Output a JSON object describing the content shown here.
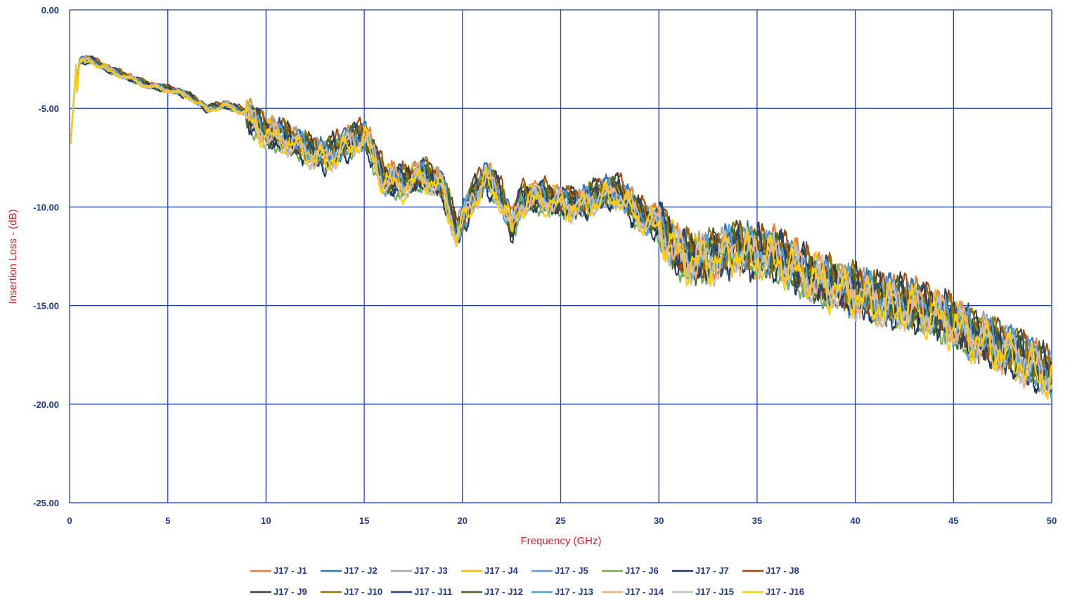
{
  "chart_data": {
    "type": "line",
    "title": "",
    "xlabel": "Frequency (GHz)",
    "ylabel": "Insertion Loss - (dB)",
    "xlim": [
      0,
      50
    ],
    "ylim": [
      -25,
      0
    ],
    "x_ticks": [
      "0",
      "5",
      "10",
      "15",
      "20",
      "25",
      "30",
      "35",
      "40",
      "45",
      "50"
    ],
    "y_ticks": [
      "0.00",
      "-5.00",
      "-10.00",
      "-15.00",
      "-20.00",
      "-25.00"
    ],
    "grid": true,
    "legend_position": "bottom",
    "colors": {
      "grid": "#1f3fb5",
      "axis_title": "#e0202a",
      "tick": "#1f3a8a"
    },
    "trend": {
      "x": [
        0.1,
        0.5,
        1.0,
        2.0,
        3.0,
        4.0,
        5.0,
        6.0,
        7.0,
        8.0,
        9.0,
        10.0,
        11.0,
        12.0,
        13.0,
        14.0,
        15.0,
        16.0,
        17.0,
        18.0,
        19.0,
        19.7,
        20.5,
        21.2,
        22.0,
        22.5,
        23.0,
        24.0,
        25.0,
        26.0,
        27.0,
        28.0,
        29.0,
        30.0,
        31.0,
        32.0,
        33.0,
        34.0,
        35.0,
        36.0,
        37.0,
        38.0,
        39.0,
        40.0,
        41.0,
        42.0,
        43.0,
        44.0,
        45.0,
        46.0,
        47.0,
        48.0,
        49.0,
        50.0
      ],
      "y": [
        -7.0,
        -2.6,
        -2.5,
        -3.0,
        -3.4,
        -3.8,
        -4.0,
        -4.3,
        -5.0,
        -4.8,
        -5.2,
        -6.2,
        -6.4,
        -7.0,
        -7.4,
        -6.8,
        -6.3,
        -8.5,
        -8.7,
        -8.3,
        -8.9,
        -11.3,
        -9.5,
        -8.4,
        -9.5,
        -11.0,
        -9.6,
        -9.4,
        -9.7,
        -9.8,
        -9.3,
        -9.2,
        -10.4,
        -10.8,
        -12.3,
        -12.6,
        -12.4,
        -12.0,
        -12.3,
        -12.4,
        -13.0,
        -13.6,
        -13.9,
        -14.2,
        -14.6,
        -14.8,
        -15.0,
        -15.3,
        -15.8,
        -16.4,
        -16.9,
        -17.3,
        -17.9,
        -18.5
      ]
    },
    "series": [
      {
        "name": "J17 - J1",
        "color": "#ed7d31"
      },
      {
        "name": "J17 - J2",
        "color": "#2e75b6"
      },
      {
        "name": "J17 - J3",
        "color": "#a5a5a5"
      },
      {
        "name": "J17 - J4",
        "color": "#ffc000"
      },
      {
        "name": "J17 - J5",
        "color": "#5b9bd5"
      },
      {
        "name": "J17 - J6",
        "color": "#70ad47"
      },
      {
        "name": "J17 - J7",
        "color": "#1f3864"
      },
      {
        "name": "J17 - J8",
        "color": "#9e480e"
      },
      {
        "name": "J17 - J9",
        "color": "#404040"
      },
      {
        "name": "J17 - J10",
        "color": "#997300"
      },
      {
        "name": "J17 - J11",
        "color": "#264478"
      },
      {
        "name": "J17 - J12",
        "color": "#43682b"
      },
      {
        "name": "J17 - J13",
        "color": "#4aa3df"
      },
      {
        "name": "J17 - J14",
        "color": "#f4b183"
      },
      {
        "name": "J17 - J15",
        "color": "#c0c0c0"
      },
      {
        "name": "J17 - J16",
        "color": "#ffd000"
      }
    ]
  }
}
